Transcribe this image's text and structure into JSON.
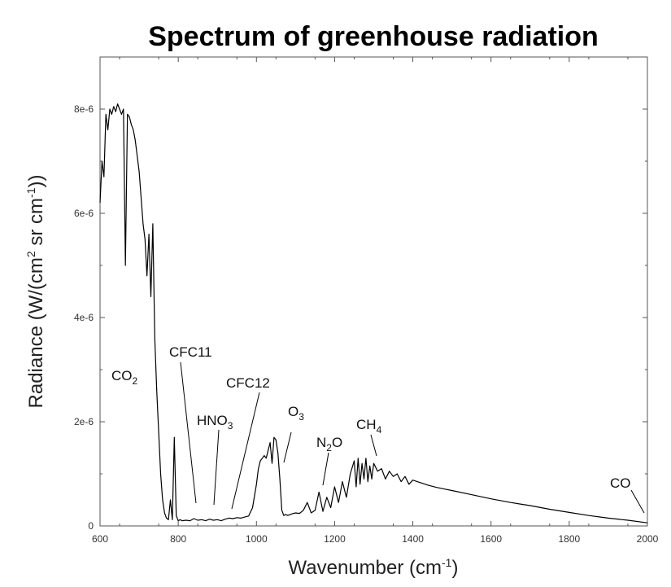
{
  "chart_data": {
    "type": "line",
    "title": "Spectrum of greenhouse radiation",
    "xlabel": "Wavenumber (cm",
    "xlabel_sup": "-1",
    "xlabel_end": ")",
    "ylabel": "Radiance (W/(cm",
    "ylabel_sup1": "2",
    "ylabel_mid": " sr cm",
    "ylabel_sup2": "-1",
    "ylabel_end": "))",
    "xlim": [
      600,
      2000
    ],
    "ylim": [
      0,
      9e-06
    ],
    "x_ticks": [
      600,
      800,
      1000,
      1200,
      1400,
      1600,
      1800,
      2000
    ],
    "x_tick_labels": [
      "600",
      "800",
      "1000",
      "1200",
      "1400",
      "1600",
      "1800",
      "2000"
    ],
    "y_ticks": [
      0,
      2e-06,
      4e-06,
      6e-06,
      8e-06
    ],
    "y_tick_labels": [
      "0",
      "2e-6",
      "4e-6",
      "6e-6",
      "8e-6"
    ],
    "grid": false,
    "legend": "none",
    "line_color": "#000000",
    "series": [
      {
        "x": [
          600,
          605,
          610,
          615,
          620,
          625,
          630,
          635,
          640,
          645,
          650,
          655,
          660,
          665,
          670,
          675,
          680,
          685,
          690,
          695,
          700,
          705,
          710,
          715,
          720,
          725,
          730,
          735,
          740,
          745,
          750,
          755,
          760,
          765,
          770,
          775,
          780,
          785,
          790,
          795,
          800,
          805,
          810,
          820,
          830,
          840,
          850,
          860,
          870,
          880,
          890,
          900,
          910,
          920,
          930,
          940,
          950,
          960,
          970,
          980,
          990,
          1000,
          1005,
          1010,
          1015,
          1020,
          1025,
          1030,
          1035,
          1040,
          1045,
          1050,
          1055,
          1060,
          1065,
          1070,
          1075,
          1080,
          1090,
          1100,
          1110,
          1120,
          1130,
          1140,
          1150,
          1160,
          1170,
          1180,
          1190,
          1200,
          1210,
          1220,
          1230,
          1240,
          1250,
          1255,
          1260,
          1265,
          1270,
          1275,
          1280,
          1285,
          1290,
          1295,
          1300,
          1310,
          1320,
          1330,
          1340,
          1350,
          1360,
          1370,
          1380,
          1390,
          1400,
          1420,
          1440,
          1460,
          1480,
          1500,
          1550,
          1600,
          1650,
          1700,
          1750,
          1800,
          1850,
          1900,
          1950,
          2000
        ],
        "values": [
          6.2e-06,
          7e-06,
          6.7e-06,
          7.9e-06,
          7.6e-06,
          8e-06,
          7.9e-06,
          8.05e-06,
          7.95e-06,
          8.1e-06,
          8e-06,
          7.9e-06,
          8e-06,
          5e-06,
          7.9e-06,
          7.85e-06,
          7.7e-06,
          7.6e-06,
          7.4e-06,
          7.1e-06,
          6.8e-06,
          6.3e-06,
          5.8e-06,
          5.5e-06,
          4.8e-06,
          5.6e-06,
          4.4e-06,
          5.8e-06,
          3.6e-06,
          2.6e-06,
          1.8e-06,
          1e-06,
          5e-07,
          2.5e-07,
          1.5e-07,
          1.2e-07,
          5e-07,
          1.2e-07,
          1.7e-06,
          2e-07,
          1e-07,
          1.2e-07,
          1e-07,
          1.1e-07,
          1e-07,
          1.4e-07,
          1.1e-07,
          1.2e-07,
          1e-07,
          1.3e-07,
          1.1e-07,
          1.2e-07,
          1e-07,
          1.3e-07,
          1.5e-07,
          1.4e-07,
          1.6e-07,
          1.5e-07,
          1.7e-07,
          1.9e-07,
          3.5e-07,
          8e-07,
          1.1e-06,
          1.25e-06,
          1.3e-06,
          1.35e-06,
          1.3e-06,
          1.45e-06,
          1.6e-06,
          1.2e-06,
          1.7e-06,
          1.65e-06,
          1.4e-06,
          9e-07,
          3e-07,
          2e-07,
          2.2e-07,
          2e-07,
          2.3e-07,
          2.5e-07,
          2.4e-07,
          3e-07,
          4.5e-07,
          2.5e-07,
          3e-07,
          6.5e-07,
          2.8e-07,
          5.5e-07,
          3.5e-07,
          7.5e-07,
          4.5e-07,
          8.5e-07,
          5.5e-07,
          1e-06,
          1.25e-06,
          7.5e-07,
          1.3e-06,
          8e-07,
          1.2e-06,
          9e-07,
          1.3e-06,
          8.5e-07,
          1.15e-06,
          9e-07,
          1.2e-06,
          1.05e-06,
          1.1e-06,
          9e-07,
          1.05e-06,
          9.5e-07,
          1e-06,
          8.5e-07,
          9.5e-07,
          8e-07,
          8.8e-07,
          8.3e-07,
          7.8e-07,
          7.4e-07,
          7.1e-07,
          6.8e-07,
          6e-07,
          5.2e-07,
          4.5e-07,
          3.9e-07,
          3.2e-07,
          2.6e-07,
          2e-07,
          1.5e-07,
          1.1e-07,
          6e-08
        ]
      }
    ],
    "annotations": [
      {
        "id": "co2",
        "text": "CO",
        "sub": "2"
      },
      {
        "id": "cfc11",
        "text": "CFC11",
        "sub": ""
      },
      {
        "id": "hno3",
        "text": "HNO",
        "sub": "3"
      },
      {
        "id": "cfc12",
        "text": "CFC12",
        "sub": ""
      },
      {
        "id": "o3",
        "text": "O",
        "sub": "3"
      },
      {
        "id": "n2o",
        "text": "N",
        "sub": "2",
        "text2": "O"
      },
      {
        "id": "ch4",
        "text": "CH",
        "sub": "4"
      },
      {
        "id": "co",
        "text": "CO",
        "sub": ""
      }
    ]
  }
}
